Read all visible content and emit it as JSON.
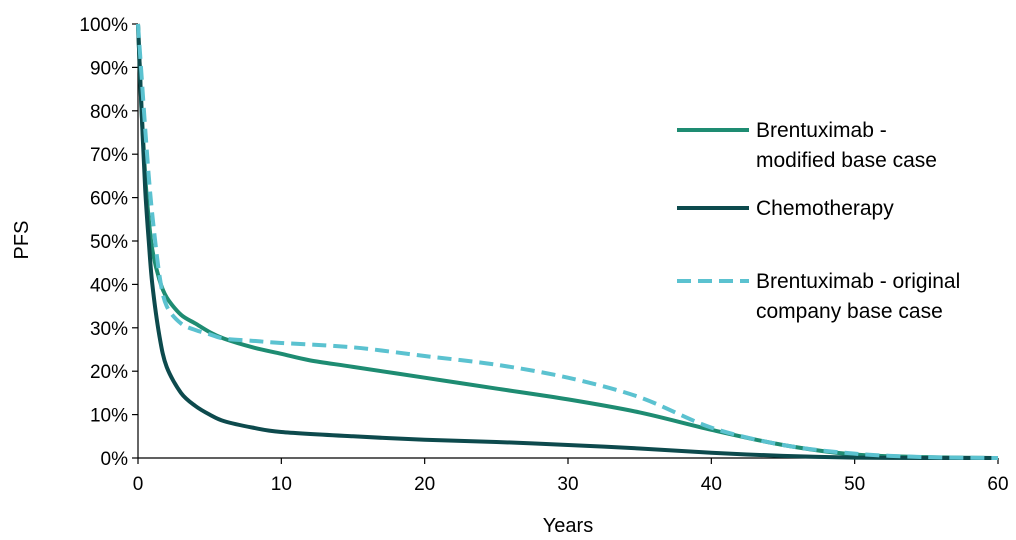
{
  "chart_data": {
    "type": "line",
    "title": "",
    "xlabel": "Years",
    "ylabel": "PFS",
    "xlim": [
      0,
      60
    ],
    "ylim": [
      0,
      100
    ],
    "x_ticks": [
      "0",
      "10",
      "20",
      "30",
      "40",
      "50",
      "60"
    ],
    "y_ticks": [
      "0%",
      "10%",
      "20%",
      "30%",
      "40%",
      "50%",
      "60%",
      "70%",
      "80%",
      "90%",
      "100%"
    ],
    "grid": false,
    "legend_position": "right",
    "series": [
      {
        "name": "Brentuximab - modified base case",
        "legend_lines": [
          "Brentuximab -",
          "modified base case"
        ],
        "color": "#1e8c72",
        "dash": "solid",
        "x": [
          0,
          0.25,
          0.5,
          0.75,
          1,
          1.5,
          2,
          3,
          4,
          5,
          6,
          8,
          10,
          12,
          15,
          20,
          25,
          30,
          35,
          40,
          45,
          50,
          55,
          60
        ],
        "y": [
          100,
          80,
          65,
          55,
          48,
          41,
          37,
          33,
          31,
          29,
          27.5,
          25.5,
          24,
          22.5,
          21,
          18.5,
          16,
          13.5,
          10.5,
          6.5,
          3,
          0.8,
          0.2,
          0
        ]
      },
      {
        "name": "Chemotherapy",
        "legend_lines": [
          "Chemotherapy"
        ],
        "color": "#0d4a4d",
        "dash": "solid",
        "x": [
          0,
          0.25,
          0.5,
          0.75,
          1,
          1.5,
          2,
          3,
          4,
          5,
          6,
          8,
          10,
          15,
          20,
          25,
          30,
          35,
          40,
          45,
          50,
          55,
          60
        ],
        "y": [
          100,
          80,
          62,
          50,
          40,
          28,
          21,
          15,
          12,
          10,
          8.5,
          7,
          6,
          5,
          4.2,
          3.7,
          3,
          2.2,
          1.2,
          0.5,
          0.1,
          0,
          0
        ]
      },
      {
        "name": "Brentuximab - original company base case",
        "legend_lines": [
          "Brentuximab - original",
          "company base case"
        ],
        "color": "#5bc2d0",
        "dash": "dashed",
        "x": [
          0,
          0.25,
          0.5,
          0.75,
          1,
          1.5,
          2,
          3,
          4,
          5,
          6,
          8,
          10,
          15,
          20,
          25,
          30,
          35,
          40,
          45,
          50,
          55,
          60
        ],
        "y": [
          100,
          88,
          76,
          65,
          56,
          42,
          35,
          31,
          29.5,
          28.5,
          27.5,
          27,
          26.5,
          25.5,
          23.5,
          21.5,
          18.5,
          14,
          7,
          3,
          1,
          0.2,
          0
        ]
      }
    ]
  }
}
